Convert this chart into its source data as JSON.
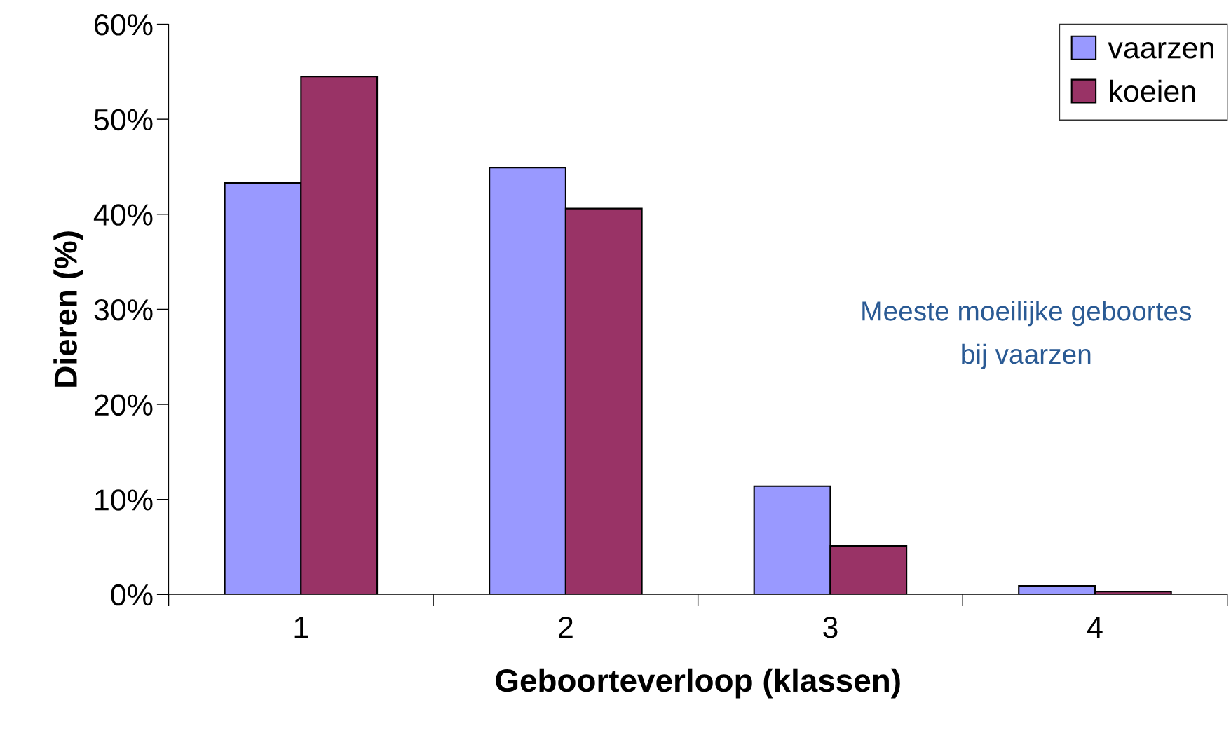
{
  "chart_data": {
    "type": "bar",
    "xlabel": "Geboorteverloop (klassen)",
    "ylabel": "Dieren (%)",
    "categories": [
      "1",
      "2",
      "3",
      "4"
    ],
    "series": [
      {
        "name": "vaarzen",
        "color": "#9999ff",
        "values": [
          43.3,
          44.9,
          11.4,
          0.9
        ]
      },
      {
        "name": "koeien",
        "color": "#993366",
        "values": [
          54.5,
          40.6,
          5.1,
          0.3
        ]
      }
    ],
    "ylim": [
      0,
      60
    ],
    "yticks": [
      {
        "value": 0,
        "label": "0%"
      },
      {
        "value": 10,
        "label": "10%"
      },
      {
        "value": 20,
        "label": "20%"
      },
      {
        "value": 30,
        "label": "30%"
      },
      {
        "value": 40,
        "label": "40%"
      },
      {
        "value": 50,
        "label": "50%"
      },
      {
        "value": 60,
        "label": "60%"
      }
    ],
    "annotations": [
      "Meeste moeilijke geboortes\nbij vaarzen"
    ],
    "legend": "top right",
    "grid": false
  }
}
